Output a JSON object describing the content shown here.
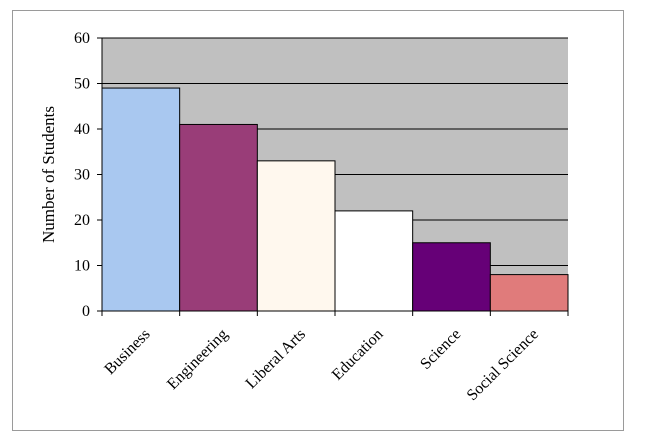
{
  "chart_data": {
    "type": "bar",
    "categories": [
      "Business",
      "Engineering",
      "Liberal Arts",
      "Education",
      "Science",
      "Social Science"
    ],
    "values": [
      49,
      41,
      33,
      22,
      15,
      8
    ],
    "colors": [
      "#a9c8f0",
      "#993d78",
      "#fff8ee",
      "#ffffff",
      "#660077",
      "#e07b7b"
    ],
    "title": "",
    "xlabel": "",
    "ylabel": "Number of Students",
    "ylim": [
      0,
      60
    ],
    "yticks": [
      0,
      10,
      20,
      30,
      40,
      50,
      60
    ],
    "grid": true,
    "legend": "none",
    "plot_background": "#c0c0c0"
  }
}
